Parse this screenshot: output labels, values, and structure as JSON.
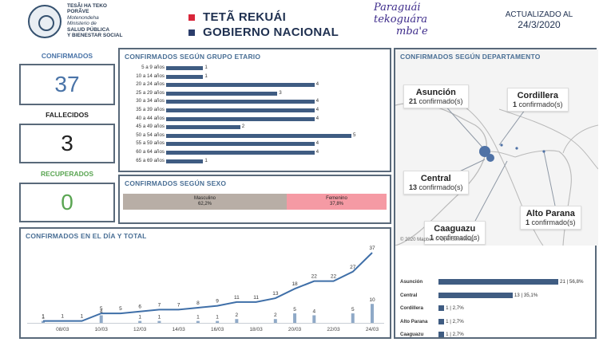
{
  "header": {
    "ministry_line1": "TESÃI HA TEKO",
    "ministry_line2": "PORÃVE",
    "ministry_line3": "Motenondeha",
    "ministry_line4": "Ministerio de",
    "ministry_line5": "SALUD PÚBLICA",
    "ministry_line6": "Y BIENESTAR SOCIAL",
    "gov_line1": "TETÃ REKUÁI",
    "gov_line2": "GOBIERNO NACIONAL",
    "brand_line1": "Paraguái",
    "brand_line2": "tekoguára",
    "brand_line3": "mba'e",
    "updated_label": "ACTUALIZADO AL",
    "updated_date": "24/3/2020",
    "colors": {
      "red": "#d9263a",
      "navy": "#2b3d6b"
    }
  },
  "kpis": {
    "confirmed_label": "CONFIRMADOS",
    "confirmed_value": "37",
    "deaths_label": "FALLECIDOS",
    "deaths_value": "3",
    "recovered_label": "RECUPERADOS",
    "recovered_value": "0",
    "colors": {
      "confirmed": "#4a74a8",
      "deaths": "#222222",
      "recovered": "#5aa552"
    }
  },
  "age_panel": {
    "title": "CONFIRMADOS SEGÚN GRUPO ETARIO"
  },
  "sex_panel": {
    "title": "CONFIRMADOS SEGÚN SEXO",
    "male_label": "Masculino",
    "male_pct": "62,2%",
    "female_label": "Femenino",
    "female_pct": "37,8%",
    "male_share": 0.622,
    "colors": {
      "male": "#b8aea6",
      "female": "#f59aa4"
    }
  },
  "daily_panel": {
    "title": "CONFIRMADOS EN EL DÍA Y TOTAL"
  },
  "map_panel": {
    "title": "CONFIRMADOS SEGÚN DEPARTAMENTO",
    "copyright": "© 2020 Mapbox © OpenStreetMap",
    "callouts": [
      {
        "name": "Asunción",
        "count": "21",
        "suffix": "confirmado(s)"
      },
      {
        "name": "Cordillera",
        "count": "1",
        "suffix": "confirmado(s)"
      },
      {
        "name": "Central",
        "count": "13",
        "suffix": "confirmado(s)"
      },
      {
        "name": "Caaguazu",
        "count": "1",
        "suffix": "confirmado(s)"
      },
      {
        "name": "Alto Parana",
        "count": "1",
        "suffix": "confirmado(s)"
      }
    ]
  },
  "chart_data": [
    {
      "type": "bar",
      "title": "CONFIRMADOS SEGÚN GRUPO ETARIO",
      "orientation": "horizontal",
      "categories": [
        "5 a 9 años",
        "10 a 14 años",
        "20 a 24 años",
        "25 a 29 años",
        "30 a 34 años",
        "35 a 39 años",
        "40 a 44 años",
        "45 a 49 años",
        "50 a 54 años",
        "55 a 59 años",
        "60 a 64 años",
        "65 a 69 años"
      ],
      "values": [
        1,
        1,
        4,
        3,
        4,
        4,
        4,
        2,
        5,
        4,
        4,
        1
      ],
      "xlim": [
        0,
        5
      ],
      "color": "#3f5c82"
    },
    {
      "type": "bar",
      "title": "CONFIRMADOS SEGÚN SEXO",
      "orientation": "horizontal-stacked-100",
      "categories": [
        "Masculino",
        "Femenino"
      ],
      "values": [
        62.2,
        37.8
      ]
    },
    {
      "type": "line",
      "title": "CONFIRMADOS EN EL DÍA Y TOTAL",
      "x": [
        "07/03",
        "08/03",
        "09/03",
        "10/03",
        "11/03",
        "12/03",
        "13/03",
        "14/03",
        "15/03",
        "16/03",
        "17/03",
        "18/03",
        "19/03",
        "20/03",
        "21/03",
        "22/03",
        "23/03",
        "24/03"
      ],
      "tick_labels": [
        "08/03",
        "10/03",
        "12/03",
        "14/03",
        "16/03",
        "18/03",
        "20/03",
        "22/03",
        "24/03"
      ],
      "series": [
        {
          "name": "Total",
          "type": "line",
          "values": [
            1,
            1,
            1,
            5,
            5,
            6,
            7,
            7,
            8,
            9,
            11,
            11,
            13,
            18,
            22,
            22,
            27,
            37
          ]
        },
        {
          "name": "En el día",
          "type": "bar",
          "values": [
            1,
            0,
            0,
            4,
            0,
            1,
            1,
            0,
            1,
            1,
            2,
            0,
            2,
            5,
            4,
            0,
            5,
            10
          ]
        }
      ],
      "ylim": [
        0,
        37
      ],
      "colors": {
        "line": "#3f6fa8",
        "bar": "#8fa9c7"
      }
    },
    {
      "type": "bar",
      "title": "CONFIRMADOS SEGÚN DEPARTAMENTO",
      "orientation": "horizontal",
      "categories": [
        "Asunción",
        "Central",
        "Cordillera",
        "Alto Parana",
        "Caaguazu"
      ],
      "values": [
        21,
        13,
        1,
        1,
        1
      ],
      "labels": [
        "21 | 56,8%",
        "13 | 35,1%",
        "1 | 2,7%",
        "1 | 2,7%",
        "1 | 2,7%"
      ],
      "xlim": [
        0,
        21
      ],
      "color": "#3f5c82"
    }
  ]
}
